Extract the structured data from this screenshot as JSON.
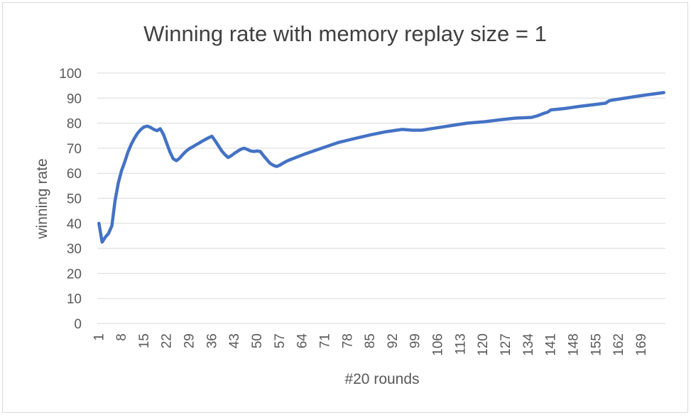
{
  "chart_data": {
    "type": "line",
    "title": "Winning rate with memory replay size = 1",
    "xlabel": "#20 rounds",
    "ylabel": "winning rate",
    "ylim": [
      0,
      100
    ],
    "yticks": [
      0,
      10,
      20,
      30,
      40,
      50,
      60,
      70,
      80,
      90,
      100
    ],
    "xtick_labels": [
      "1",
      "8",
      "15",
      "22",
      "29",
      "36",
      "43",
      "50",
      "57",
      "64",
      "71",
      "78",
      "85",
      "92",
      "99",
      "106",
      "113",
      "120",
      "127",
      "134",
      "141",
      "148",
      "155",
      "162",
      "169"
    ],
    "x_count": 176,
    "grid": true,
    "legend": "none",
    "colors": {
      "line": "#4472C4",
      "grid": "#d9d9d9",
      "text": "#595959",
      "title": "#404040"
    },
    "series": [
      {
        "points": [
          [
            1,
            40
          ],
          [
            2,
            32.5
          ],
          [
            3,
            34.5
          ],
          [
            4,
            36
          ],
          [
            5,
            39
          ],
          [
            6,
            49
          ],
          [
            7,
            56
          ],
          [
            8,
            61
          ],
          [
            9,
            64.5
          ],
          [
            10,
            68.5
          ],
          [
            11,
            71.5
          ],
          [
            12,
            74
          ],
          [
            13,
            76
          ],
          [
            14,
            77.5
          ],
          [
            15,
            78.5
          ],
          [
            16,
            78.8
          ],
          [
            17,
            78.3
          ],
          [
            18,
            77.5
          ],
          [
            19,
            77
          ],
          [
            20,
            77.8
          ],
          [
            21,
            75.5
          ],
          [
            22,
            72
          ],
          [
            23,
            68.5
          ],
          [
            24,
            65.8
          ],
          [
            25,
            65
          ],
          [
            26,
            66
          ],
          [
            27,
            67.5
          ],
          [
            28,
            68.8
          ],
          [
            29,
            69.8
          ],
          [
            30,
            70.5
          ],
          [
            31,
            71.3
          ],
          [
            32,
            72
          ],
          [
            33,
            72.8
          ],
          [
            34,
            73.5
          ],
          [
            35,
            74.2
          ],
          [
            36,
            74.8
          ],
          [
            37,
            73
          ],
          [
            38,
            71
          ],
          [
            39,
            69
          ],
          [
            40,
            67.5
          ],
          [
            41,
            66.3
          ],
          [
            42,
            67
          ],
          [
            43,
            68
          ],
          [
            44,
            68.8
          ],
          [
            45,
            69.6
          ],
          [
            46,
            70
          ],
          [
            47,
            69.5
          ],
          [
            48,
            68.9
          ],
          [
            49,
            68.7
          ],
          [
            50,
            68.9
          ],
          [
            51,
            68.7
          ],
          [
            52,
            67
          ],
          [
            53,
            65.5
          ],
          [
            54,
            64
          ],
          [
            55,
            63.2
          ],
          [
            56,
            62.7
          ],
          [
            57,
            63.2
          ],
          [
            58,
            64
          ],
          [
            59,
            64.7
          ],
          [
            60,
            65.3
          ],
          [
            65,
            67.8
          ],
          [
            70,
            70
          ],
          [
            75,
            72.2
          ],
          [
            80,
            73.8
          ],
          [
            85,
            75.3
          ],
          [
            90,
            76.6
          ],
          [
            95,
            77.5
          ],
          [
            98,
            77.2
          ],
          [
            101,
            77.2
          ],
          [
            105,
            78
          ],
          [
            110,
            79
          ],
          [
            115,
            80
          ],
          [
            120,
            80.5
          ],
          [
            125,
            81.3
          ],
          [
            130,
            82
          ],
          [
            135,
            82.3
          ],
          [
            137,
            83
          ],
          [
            138,
            83.5
          ],
          [
            139,
            84
          ],
          [
            140,
            84.4
          ],
          [
            141,
            85.3
          ],
          [
            145,
            85.8
          ],
          [
            150,
            86.7
          ],
          [
            155,
            87.5
          ],
          [
            158,
            88
          ],
          [
            159,
            88.9
          ],
          [
            160,
            89.2
          ],
          [
            165,
            90.2
          ],
          [
            170,
            91.2
          ],
          [
            176,
            92.2
          ]
        ]
      }
    ]
  }
}
